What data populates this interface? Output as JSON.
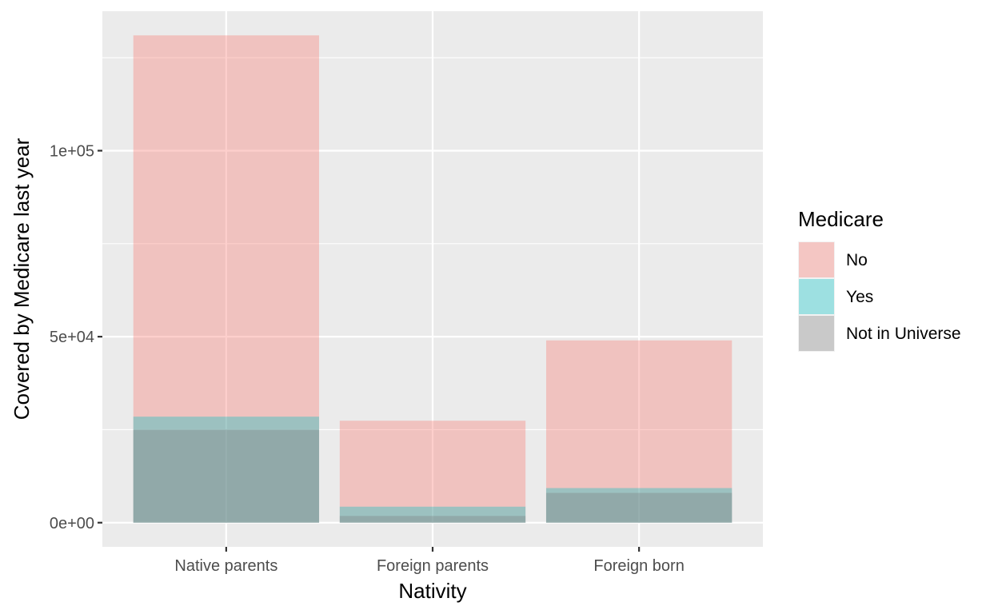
{
  "chart_data": {
    "type": "bar",
    "title": "",
    "xlabel": "Nativity",
    "ylabel": "Covered by Medicare last year",
    "categories": [
      "Native parents",
      "Foreign parents",
      "Foreign born"
    ],
    "series": [
      {
        "name": "No",
        "color": "#F8766D",
        "values": [
          131000,
          27400,
          49000
        ]
      },
      {
        "name": "Yes",
        "color": "#00BFC4",
        "values": [
          28500,
          4300,
          9300
        ]
      },
      {
        "name": "Not in Universe",
        "color": "#7F7F7F",
        "values": [
          25000,
          1800,
          8000
        ]
      }
    ],
    "bar_opacity": 0.35,
    "ylim": [
      -6500,
      137500
    ],
    "y_ticks": [
      0,
      50000,
      100000
    ],
    "y_tick_labels": [
      "0e+00",
      "5e+04",
      "1e+05"
    ],
    "grid": true,
    "legend_title": "Medicare",
    "legend_position": "right"
  }
}
